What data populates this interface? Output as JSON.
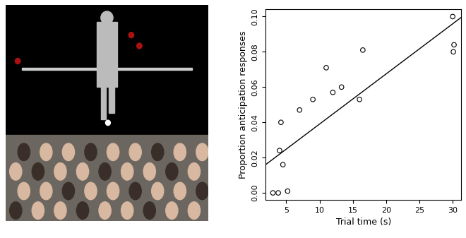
{
  "chart_data": {
    "type": "scatter",
    "x_label": "Trial time (s)",
    "y_label": "Proportion anticipation responses",
    "xlim": [
      1.9,
      31.3
    ],
    "ylim": [
      -0.004,
      0.104
    ],
    "xticks": [
      5,
      10,
      15,
      20,
      25,
      30
    ],
    "yticks": [
      {
        "value": 0.0,
        "label": "0.00"
      },
      {
        "value": 0.02,
        "label": "0.02"
      },
      {
        "value": 0.04,
        "label": "0.04"
      },
      {
        "value": 0.06,
        "label": "0.06"
      },
      {
        "value": 0.08,
        "label": "0.08"
      },
      {
        "value": 0.1,
        "label": "0.10"
      }
    ],
    "series": [
      {
        "type": "scatter",
        "color": "#000000",
        "marker": "o",
        "x": [
          3.0,
          3.8,
          5.2,
          4.0,
          4.2,
          4.5,
          7.0,
          9.0,
          11.0,
          12.0,
          13.3,
          16.0,
          16.5,
          30.0,
          30.2,
          30.1
        ],
        "values": [
          0.0,
          0.0,
          0.001,
          0.024,
          0.04,
          0.016,
          0.047,
          0.053,
          0.071,
          0.057,
          0.06,
          0.053,
          0.081,
          0.1,
          0.084,
          0.08
        ]
      },
      {
        "type": "line",
        "color": "#000000",
        "line_style": "solid",
        "x": [
          1.9,
          31.3
        ],
        "values": [
          0.016,
          0.0996
        ]
      }
    ]
  }
}
